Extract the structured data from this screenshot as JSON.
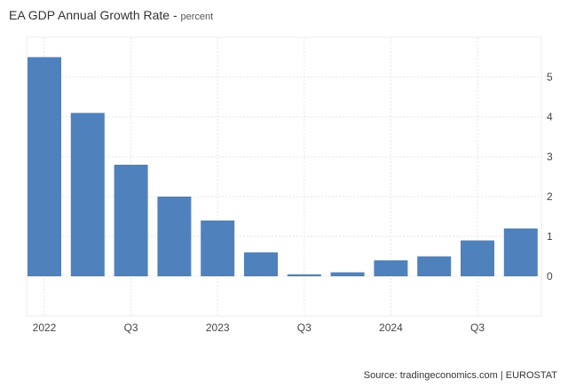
{
  "chart_data": {
    "type": "bar",
    "title": "EA GDP Annual Growth Rate",
    "unit": "percent",
    "source": "Source: tradingeconomics.com | EUROSTAT",
    "categories": [
      "2022 Q1",
      "2022 Q2",
      "2022 Q3",
      "2022 Q4",
      "2023 Q1",
      "2023 Q2",
      "2023 Q3",
      "2023 Q4",
      "2024 Q1",
      "2024 Q2",
      "2024 Q3",
      "2024 Q4"
    ],
    "values": [
      5.5,
      4.1,
      2.8,
      2.0,
      1.4,
      0.6,
      0.05,
      0.1,
      0.4,
      0.5,
      0.9,
      1.2
    ],
    "x_tick_labels": [
      {
        "index": 0,
        "label": "2022"
      },
      {
        "index": 2,
        "label": "Q3"
      },
      {
        "index": 4,
        "label": "2023"
      },
      {
        "index": 6,
        "label": "Q3"
      },
      {
        "index": 8,
        "label": "2024"
      },
      {
        "index": 10,
        "label": "Q3"
      }
    ],
    "y_ticks": [
      0,
      1,
      2,
      3,
      4,
      5
    ],
    "ylim": [
      -1,
      6
    ],
    "bar_color": "#4f81bd",
    "grid": true,
    "y_axis_position": "right"
  }
}
